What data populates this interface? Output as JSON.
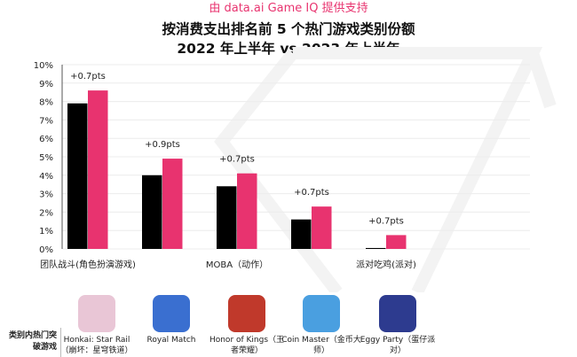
{
  "credit": "由 data.ai Game IQ 提供支持",
  "chart_data": {
    "type": "bar",
    "title": "按消费支出排名前 5 个热门游戏类别份额",
    "subtitle": "2022 年上半年 vs 2023 年上半年",
    "categories": [
      "团队战斗(角色扮演游戏)",
      "",
      "MOBA（动作）",
      "",
      "派对吃鸡(派对)"
    ],
    "series": [
      {
        "values": [
          7.9,
          4.0,
          3.4,
          1.6,
          0.05
        ],
        "color": "#000000"
      },
      {
        "values": [
          8.6,
          4.9,
          4.1,
          2.3,
          0.75
        ],
        "color": "#e8336f"
      }
    ],
    "annotations": [
      "+0.7pts",
      "+0.9pts",
      "+0.7pts",
      "+0.7pts",
      "+0.7pts"
    ],
    "yticks": [
      "0%",
      "1%",
      "2%",
      "3%",
      "4%",
      "5%",
      "6%",
      "7%",
      "8%",
      "9%",
      "10%"
    ],
    "ylim": [
      0,
      10
    ],
    "grid": true
  },
  "breakout": {
    "label": "类别内热门突破游戏",
    "games": [
      {
        "name": "Honkai: Star Rail（崩坏：星穹铁道）",
        "color": "#e9c6d6"
      },
      {
        "name": "Royal Match",
        "color": "#3a6fd0"
      },
      {
        "name": "Honor of Kings（王者荣耀）",
        "color": "#c0392b"
      },
      {
        "name": "Coin Master（金币大师）",
        "color": "#4a9fe0"
      },
      {
        "name": "Eggy Party（蛋仔派对）",
        "color": "#2d3b8f"
      }
    ]
  }
}
